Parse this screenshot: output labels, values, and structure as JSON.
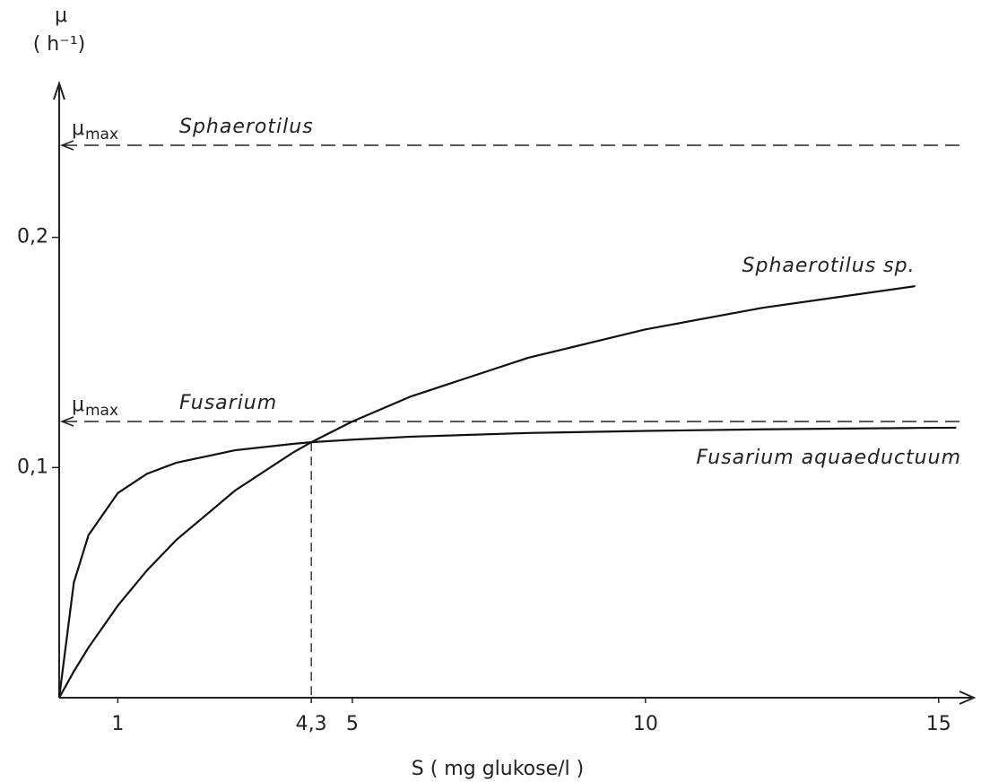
{
  "chart_data": {
    "type": "line",
    "y_label": "μ",
    "y_unit": "( h⁻¹)",
    "x_label": "S ( mg glukose/l )",
    "x": [
      0,
      0.25,
      0.5,
      1,
      1.5,
      2,
      3,
      4,
      4.3,
      5,
      6,
      8,
      10,
      12,
      14.6,
      15.3
    ],
    "series": [
      {
        "name": "Sphaerotilus sp.",
        "color": "#111111",
        "values": [
          0,
          0.0114,
          0.0218,
          0.04,
          0.0554,
          0.0686,
          0.09,
          0.1067,
          0.111,
          0.12,
          0.1309,
          0.1477,
          0.16,
          0.1694,
          0.1788,
          null
        ]
      },
      {
        "name": "Fusarium aquaeductuum",
        "color": "#111111",
        "values": [
          0,
          0.05,
          0.0706,
          0.0889,
          0.0973,
          0.1021,
          0.1075,
          0.1103,
          0.111,
          0.1121,
          0.1134,
          0.115,
          0.1159,
          0.1166,
          0.1172,
          0.1173
        ]
      }
    ],
    "reference_lines": [
      {
        "value": 0.24,
        "symbol": "μ",
        "subscript": "max",
        "label": "Sphaerotilus"
      },
      {
        "value": 0.12,
        "symbol": "μ",
        "subscript": "max",
        "label": "Fusarium"
      }
    ],
    "crossing": {
      "x": 4.3,
      "y": 0.111
    },
    "xlim": [
      0,
      15.6
    ],
    "ylim": [
      0,
      0.27
    ],
    "xticks": [
      1,
      {
        "value": 4.3,
        "label": "4,3"
      },
      5,
      10,
      15
    ],
    "yticks": [
      {
        "value": 0.1,
        "label": "0,1"
      },
      {
        "value": 0.2,
        "label": "0,2"
      }
    ],
    "grid": false
  }
}
